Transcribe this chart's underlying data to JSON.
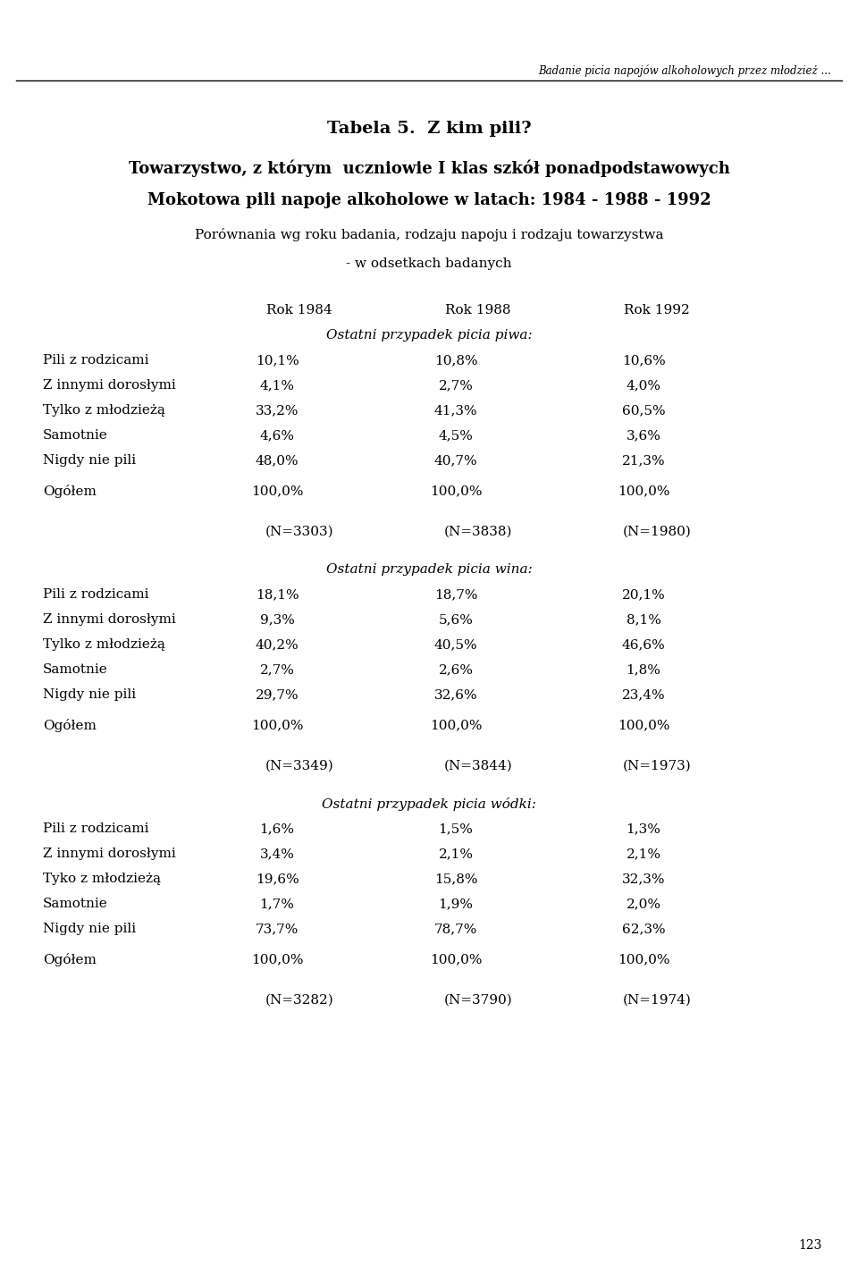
{
  "header_line": "Badanie picia napojów alkoholowych przez młodzież ...",
  "title1": "Tabela 5.  Z kim pili?",
  "title2": "Towarzystwo, z którym  uczniowie I klas szkół ponadpodstawowych",
  "title3": "Mokotowa pili napoje alkoholowe w latach: 1984 - 1988 - 1992",
  "title4": "Porównania wg roku badania, rodzaju napoju i rodzaju towarzystwa",
  "title5": "- w odsetkach badanych",
  "col_headers": [
    "Rok 1984",
    "Rok 1988",
    "Rok 1992"
  ],
  "section1_header": "Ostatni przypadek picia piwa:",
  "section1_rows": [
    [
      "Pili z rodzicami",
      "10,1%",
      "10,8%",
      "10,6%"
    ],
    [
      "Z innymi dorosłymi",
      "4,1%",
      "2,7%",
      "4,0%"
    ],
    [
      "Tylko z młodzieżą",
      "33,2%",
      "41,3%",
      "60,5%"
    ],
    [
      "Samotnie",
      "4,6%",
      "4,5%",
      "3,6%"
    ],
    [
      "Nigdy nie pili",
      "48,0%",
      "40,7%",
      "21,3%"
    ],
    [
      "Ogółem",
      "100,0%",
      "100,0%",
      "100,0%"
    ]
  ],
  "section1_n": [
    "(N=3303)",
    "(N=3838)",
    "(N=1980)"
  ],
  "section2_header": "Ostatni przypadek picia wina:",
  "section2_rows": [
    [
      "Pili z rodzicami",
      "18,1%",
      "18,7%",
      "20,1%"
    ],
    [
      "Z innymi dorosłymi",
      "9,3%",
      "5,6%",
      "8,1%"
    ],
    [
      "Tylko z młodzieżą",
      "40,2%",
      "40,5%",
      "46,6%"
    ],
    [
      "Samotnie",
      "2,7%",
      "2,6%",
      "1,8%"
    ],
    [
      "Nigdy nie pili",
      "29,7%",
      "32,6%",
      "23,4%"
    ],
    [
      "Ogółem",
      "100,0%",
      "100,0%",
      "100,0%"
    ]
  ],
  "section2_n": [
    "(N=3349)",
    "(N=3844)",
    "(N=1973)"
  ],
  "section3_header": "Ostatni przypadek picia wódki:",
  "section3_rows": [
    [
      "Pili z rodzicami",
      "1,6%",
      "1,5%",
      "1,3%"
    ],
    [
      "Z innymi dorosłymi",
      "3,4%",
      "2,1%",
      "2,1%"
    ],
    [
      "Tyko z młodzieżą",
      "19,6%",
      "15,8%",
      "32,3%"
    ],
    [
      "Samotnie",
      "1,7%",
      "1,9%",
      "2,0%"
    ],
    [
      "Nigdy nie pili",
      "73,7%",
      "78,7%",
      "62,3%"
    ],
    [
      "Ogółem",
      "100,0%",
      "100,0%",
      "100,0%"
    ]
  ],
  "section3_n": [
    "(N=3282)",
    "(N=3790)",
    "(N=1974)"
  ],
  "page_number": "123",
  "bg_color": "#ffffff",
  "header_fontsize": 8.5,
  "title1_fontsize": 14,
  "title23_fontsize": 13,
  "title45_fontsize": 11,
  "body_fontsize": 11,
  "col_header_fontsize": 11,
  "section_header_fontsize": 11,
  "n_fontsize": 11,
  "page_num_fontsize": 10,
  "fig_width": 9.6,
  "fig_height": 14.34,
  "dpi": 100
}
